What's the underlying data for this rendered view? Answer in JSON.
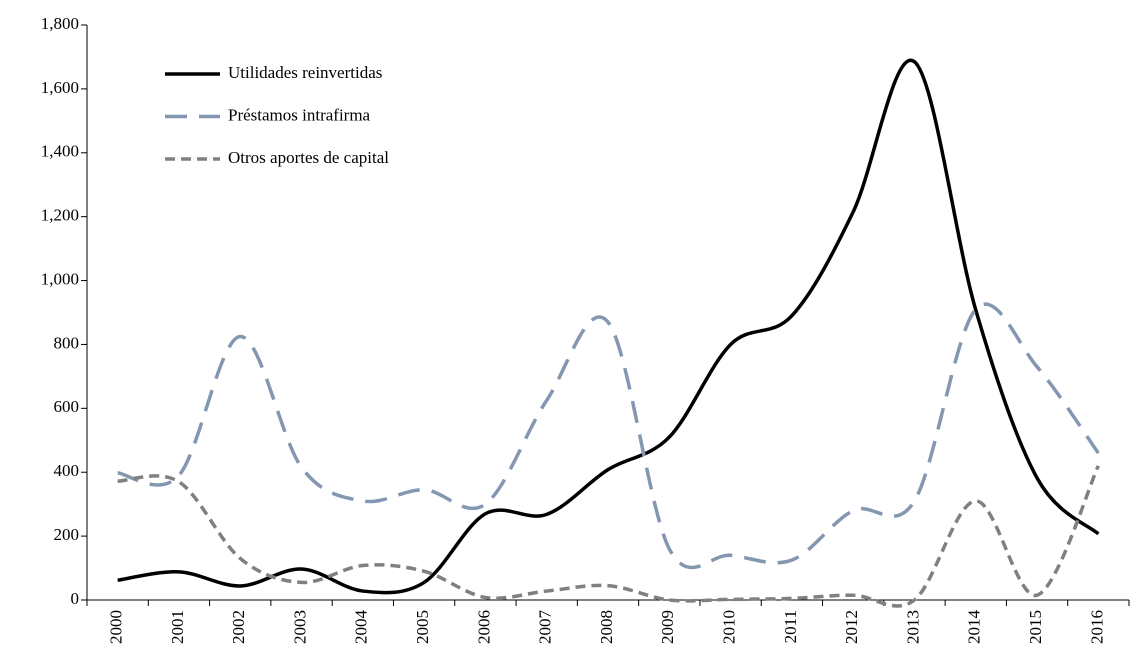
{
  "chart_data": {
    "type": "line",
    "categories": [
      "2000",
      "2001",
      "2002",
      "2003",
      "2004",
      "2005",
      "2006",
      "2007",
      "2008",
      "2009",
      "2010",
      "2011",
      "2012",
      "2013",
      "2014",
      "2015",
      "2016"
    ],
    "series": [
      {
        "name": "Utilidades reinvertidas",
        "color": "#000000",
        "dash": "none",
        "values": [
          62,
          88,
          44,
          97,
          28,
          55,
          270,
          268,
          408,
          510,
          800,
          890,
          1215,
          1685,
          908,
          382,
          207
        ]
      },
      {
        "name": "Préstamos intrafirma",
        "color": "#8497b0",
        "dash": "long",
        "values": [
          398,
          390,
          825,
          415,
          310,
          345,
          300,
          625,
          870,
          160,
          140,
          125,
          280,
          310,
          910,
          730,
          460
        ]
      },
      {
        "name": "Otros aportes de capital",
        "color": "#808080",
        "dash": "short",
        "values": [
          372,
          370,
          130,
          55,
          108,
          90,
          8,
          28,
          45,
          0,
          2,
          5,
          15,
          0,
          310,
          15,
          420
        ]
      }
    ],
    "ylim": [
      0,
      1800
    ],
    "yticks": [
      0,
      200,
      400,
      600,
      800,
      {
        "value": 1000,
        "label": "1,000"
      },
      {
        "value": 1200,
        "label": "1,200"
      },
      {
        "value": 1400,
        "label": "1,400"
      },
      {
        "value": 1600,
        "label": "1,600"
      },
      {
        "value": 1800,
        "label": "1,800"
      }
    ],
    "grid": false,
    "legend": "upper left"
  }
}
